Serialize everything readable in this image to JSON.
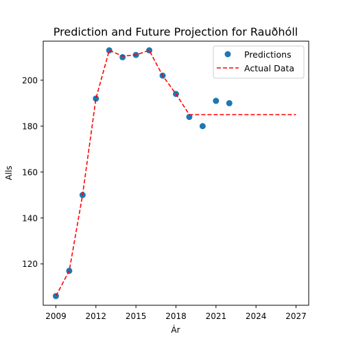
{
  "chart_data": {
    "type": "scatter",
    "title": "Prediction and Future Projection for Rauðhóll",
    "xlabel": "Ár",
    "ylabel": "Alls",
    "xlim": [
      2008.05,
      2027.95
    ],
    "ylim": [
      102,
      217
    ],
    "xticks": [
      2009,
      2012,
      2015,
      2018,
      2021,
      2024,
      2027
    ],
    "yticks": [
      120,
      140,
      160,
      180,
      200
    ],
    "grid": false,
    "legend_position": "upper right",
    "colors": {
      "predictions": "#1f77b4",
      "actual": "#ff0000"
    },
    "series": [
      {
        "name": "Predictions",
        "style": "markers",
        "x": [
          2009,
          2010,
          2011,
          2012,
          2013,
          2014,
          2015,
          2016,
          2017,
          2018,
          2019,
          2020,
          2021,
          2022
        ],
        "y": [
          106,
          117,
          150,
          192,
          213,
          210,
          211,
          213,
          202,
          194,
          184,
          180,
          191,
          190
        ]
      },
      {
        "name": "Actual Data",
        "style": "dashed-line",
        "x": [
          2009,
          2010,
          2011,
          2012,
          2013,
          2014,
          2015,
          2016,
          2017,
          2018,
          2019,
          2020,
          2021,
          2022,
          2023,
          2024,
          2025,
          2026,
          2027
        ],
        "y": [
          106,
          117,
          150,
          192,
          213,
          210.5,
          211,
          213,
          202,
          194,
          185,
          185,
          185,
          185,
          185,
          185,
          185,
          185,
          185
        ]
      }
    ]
  }
}
